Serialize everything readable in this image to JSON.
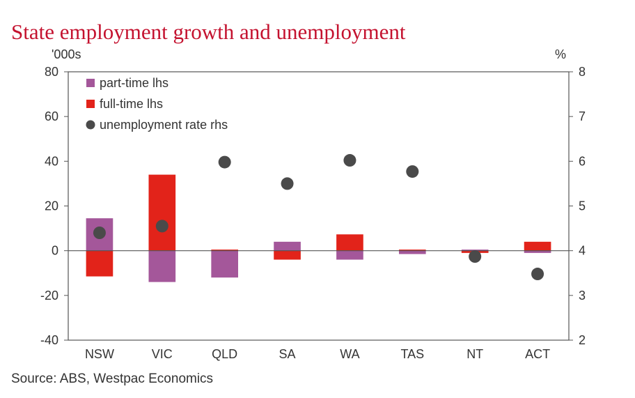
{
  "title": "State employment growth and unemployment",
  "source": "Source: ABS, Westpac Economics",
  "chart_data": {
    "type": "bar",
    "stacked": true,
    "categories": [
      "NSW",
      "VIC",
      "QLD",
      "SA",
      "WA",
      "TAS",
      "NT",
      "ACT"
    ],
    "y_left": {
      "unit_label": "'000s",
      "lim": [
        -40,
        80
      ],
      "ticks": [
        -40,
        -20,
        0,
        20,
        40,
        60,
        80
      ]
    },
    "y_right": {
      "unit_label": "%",
      "lim": [
        2,
        8
      ],
      "ticks": [
        2,
        3,
        4,
        5,
        6,
        7,
        8
      ]
    },
    "series": [
      {
        "name": "part-time lhs",
        "kind": "bar",
        "axis": "left",
        "color": "#a4579a",
        "values": [
          14.5,
          -14,
          -12,
          4,
          -4,
          -1.5,
          0.5,
          -1
        ]
      },
      {
        "name": "full-time lhs",
        "kind": "bar",
        "axis": "left",
        "color": "#e2231a",
        "values": [
          -11.5,
          34,
          0.5,
          -4,
          7.3,
          0.5,
          -1,
          4
        ]
      },
      {
        "name": "unemployment rate rhs",
        "kind": "scatter",
        "axis": "right",
        "color": "#4a4a4a",
        "values": [
          4.4,
          4.55,
          5.98,
          5.5,
          6.02,
          5.77,
          3.87,
          3.48
        ]
      }
    ],
    "legend_position": "top-left",
    "grid": false
  }
}
